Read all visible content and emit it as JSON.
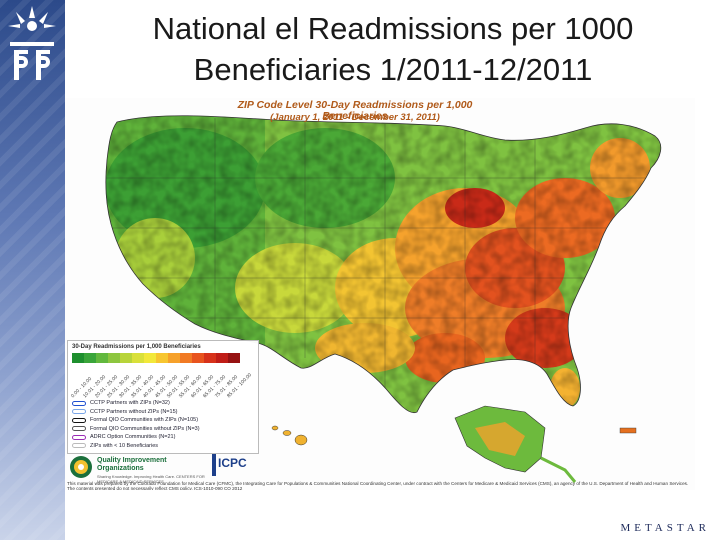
{
  "slide": {
    "title_line1": "National el Readmissions per 1000",
    "title_line2": "Beneficiaries 1/2011-12/2011"
  },
  "map": {
    "title": "ZIP Code Level 30-Day Readmissions per 1,000 Beneficiaries",
    "subtitle": "(January 1, 2011 - December 31, 2011)"
  },
  "legend": {
    "title": "30-Day Readmissions per 1,000 Beneficiaries",
    "ranges": [
      "0.00 - 10.00",
      "10.01 - 20.00",
      "20.01 - 25.00",
      "25.01 - 30.00",
      "30.01 - 35.00",
      "35.01 - 40.00",
      "40.01 - 45.00",
      "45.01 - 50.00",
      "50.01 - 55.00",
      "55.01 - 60.00",
      "60.01 - 65.00",
      "65.01 - 75.00",
      "75.01 - 85.00",
      "85.01 - 100.00"
    ],
    "ramp_colors": [
      "#1e8f2e",
      "#3aa53a",
      "#62b83d",
      "#8dc63f",
      "#b8d43a",
      "#d9e03a",
      "#f2e83a",
      "#f7c630",
      "#f6a12a",
      "#f17a24",
      "#e8541e",
      "#d7321a",
      "#c01d17",
      "#961212"
    ],
    "items": [
      {
        "label": "CCTP Partners with ZIPs (N=32)",
        "color": "#1f4fd0"
      },
      {
        "label": "CCTP Partners without ZIPs (N=15)",
        "color": "#7aa6e8"
      },
      {
        "label": "Formal QIO Communities with ZIPs (N=105)",
        "color": "#111111"
      },
      {
        "label": "Formal QIO Communities without ZIPs (N=3)",
        "color": "#555555"
      },
      {
        "label": "ADRC Option Communities (N=21)",
        "color": "#9a2bb5"
      },
      {
        "label": "ZIPs with < 10 Beneficiaries",
        "color": "#bbbbbb"
      }
    ]
  },
  "qio": {
    "line1": "Quality Improvement",
    "line2": "Organizations",
    "tagline": "Sharing Knowledge. Improving Health Care. CENTERS FOR MEDICARE & MEDICAID SERVICES"
  },
  "icpc": {
    "label": "ICPC"
  },
  "disclaimer": "This material was prepared by the Colorado Foundation for Medical Care (CFMC), the Integrating Care for Populations & Communities National Coordinating Center, under contract with the Centers for Medicare & Medicaid Services (CMS), an agency of the U.S. Department of Health and Human Services. The contents presented do not necessarily reflect CMS policy. ICS-1010-090 CO 2012",
  "footer": {
    "brand": "METASTAR"
  }
}
